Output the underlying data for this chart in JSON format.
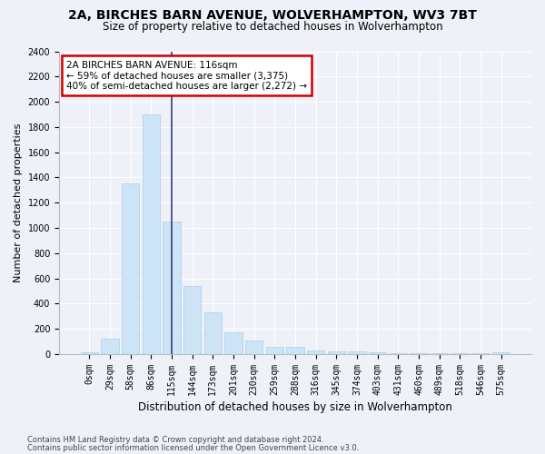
{
  "title1": "2A, BIRCHES BARN AVENUE, WOLVERHAMPTON, WV3 7BT",
  "title2": "Size of property relative to detached houses in Wolverhampton",
  "xlabel": "Distribution of detached houses by size in Wolverhampton",
  "ylabel": "Number of detached properties",
  "categories": [
    "0sqm",
    "29sqm",
    "58sqm",
    "86sqm",
    "115sqm",
    "144sqm",
    "173sqm",
    "201sqm",
    "230sqm",
    "259sqm",
    "288sqm",
    "316sqm",
    "345sqm",
    "374sqm",
    "403sqm",
    "431sqm",
    "460sqm",
    "489sqm",
    "518sqm",
    "546sqm",
    "575sqm"
  ],
  "values": [
    15,
    125,
    1350,
    1900,
    1050,
    540,
    335,
    170,
    105,
    60,
    55,
    30,
    25,
    20,
    15,
    10,
    5,
    10,
    5,
    5,
    15
  ],
  "bar_color": "#cce4f5",
  "bar_edge_color": "#aaccee",
  "vline_x_index": 4,
  "vline_color": "#3a3a7a",
  "annotation_text": "2A BIRCHES BARN AVENUE: 116sqm\n← 59% of detached houses are smaller (3,375)\n40% of semi-detached houses are larger (2,272) →",
  "annotation_box_color": "white",
  "annotation_box_edge": "#cc0000",
  "ylim": [
    0,
    2400
  ],
  "yticks": [
    0,
    200,
    400,
    600,
    800,
    1000,
    1200,
    1400,
    1600,
    1800,
    2000,
    2200,
    2400
  ],
  "footer1": "Contains HM Land Registry data © Crown copyright and database right 2024.",
  "footer2": "Contains public sector information licensed under the Open Government Licence v3.0.",
  "bg_color": "#eef2f8",
  "plot_bg_color": "#eef2f8",
  "grid_color": "#ffffff",
  "title1_fontsize": 10,
  "title2_fontsize": 8.5,
  "xlabel_fontsize": 8.5,
  "ylabel_fontsize": 8,
  "tick_fontsize": 7,
  "footer_fontsize": 6.0
}
